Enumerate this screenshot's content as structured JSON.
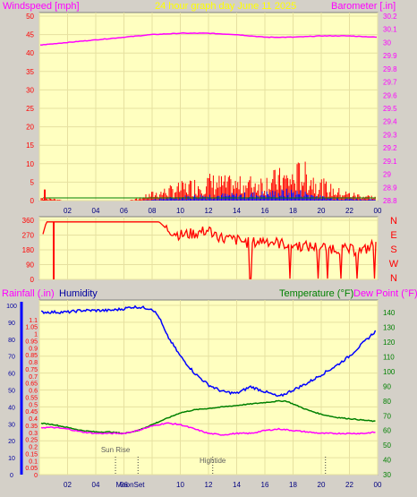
{
  "header": {
    "left_title": "Windspeed [mph]",
    "center_title": "24 hour graph day   June 11 2025",
    "right_title": "Barometer [.in]"
  },
  "colors": {
    "plot_bg": "#ffffc0",
    "frame_bg": "#d4d0c8",
    "gust": "#ff0000",
    "wind_avg": "#0000ff",
    "wind_green": "#008000",
    "baro": "#ff00ff",
    "direction": "#ff0000",
    "humidity": "#0000ff",
    "temperature": "#008000",
    "dewpoint": "#ff00ff",
    "rain_axis": "#ff0000",
    "label_pink": "#ff00ff",
    "label_green": "#008000",
    "label_blue": "#0000a0"
  },
  "chart_data": [
    {
      "type": "line",
      "name": "wind-baro",
      "xlabel": "",
      "x_ticks": [
        "02",
        "04",
        "06",
        "08",
        "10",
        "12",
        "14",
        "16",
        "18",
        "20",
        "22",
        "00"
      ],
      "y_left": {
        "label": "Windspeed [mph]",
        "ylim": [
          0,
          50
        ],
        "ticks": [
          0,
          5,
          10,
          15,
          20,
          25,
          30,
          35,
          40,
          45,
          50
        ]
      },
      "y_right": {
        "label": "Barometer [.in]",
        "ylim": [
          28.8,
          30.2
        ],
        "ticks": [
          "28.8",
          "28.9",
          "29",
          "29.1",
          "29.2",
          "29.3",
          "29.4",
          "29.5",
          "29.6",
          "29.7",
          "29.8",
          "29.9",
          "30",
          "30.1",
          "30.2"
        ]
      },
      "grid": true,
      "series": [
        {
          "name": "Barometer",
          "axis": "right",
          "x": [
            0,
            2,
            4,
            6,
            8,
            10,
            12,
            14,
            16,
            18,
            20,
            22,
            24
          ],
          "y": [
            29.98,
            30.0,
            30.02,
            30.04,
            30.06,
            30.07,
            30.07,
            30.06,
            30.04,
            30.04,
            30.05,
            30.05,
            30.04
          ]
        },
        {
          "name": "Wind gust",
          "axis": "left",
          "x": [
            0,
            1,
            2,
            4,
            6,
            7,
            8,
            10,
            12,
            14,
            16,
            17,
            18,
            18.5,
            19,
            20,
            21,
            22,
            23,
            24
          ],
          "y": [
            1,
            0.5,
            0,
            0,
            0,
            0.5,
            2,
            4,
            6,
            5,
            6,
            7,
            7,
            9,
            8,
            5,
            3,
            2,
            1.5,
            1
          ]
        },
        {
          "name": "Wind speed",
          "axis": "left",
          "x": [
            0,
            7,
            8,
            10,
            12,
            14,
            16,
            18,
            19,
            20,
            22,
            24
          ],
          "y": [
            0,
            0,
            0.3,
            1,
            1.5,
            1.5,
            2,
            2.5,
            2,
            1,
            0.5,
            0.2
          ]
        }
      ]
    },
    {
      "type": "line",
      "name": "wind-direction",
      "x_ticks": [],
      "y_left": {
        "label": "",
        "ylim": [
          0,
          360
        ],
        "ticks": [
          0,
          90,
          180,
          270,
          360
        ]
      },
      "y_right_labels": [
        "N",
        "W",
        "S",
        "E",
        "N"
      ],
      "grid": true,
      "series": [
        {
          "name": "Direction",
          "x": [
            0,
            0.5,
            1,
            2,
            4,
            6,
            7,
            8,
            8.5,
            9,
            10,
            11,
            12,
            13,
            14,
            15,
            16,
            17,
            18,
            19,
            20,
            21,
            22,
            23,
            24
          ],
          "y": [
            200,
            350,
            350,
            350,
            350,
            350,
            350,
            350,
            350,
            310,
            270,
            280,
            300,
            250,
            240,
            220,
            240,
            220,
            210,
            200,
            195,
            190,
            180,
            175,
            230
          ]
        }
      ]
    },
    {
      "type": "line",
      "name": "temp-humidity",
      "x_ticks": [
        "02",
        "04",
        "06",
        "08",
        "10",
        "12",
        "14",
        "16",
        "18",
        "20",
        "22",
        "00"
      ],
      "y_left_labels": {
        "rain": "Rainfall (.in)",
        "humidity": "Humidity"
      },
      "y_rain": {
        "ylim": [
          0,
          1.2
        ],
        "ticks": [
          "0",
          "0.05",
          "0.1",
          "0.15",
          "0.2",
          "0.25",
          "0.3",
          "0.35",
          "0.4",
          "0.45",
          "0.5",
          "0.55",
          "0.6",
          "0.65",
          "0.7",
          "0.75",
          "0.8",
          "0.85",
          "0.9",
          "0.95",
          "1",
          "1.05",
          "1.1"
        ]
      },
      "y_humidity": {
        "ylim": [
          0,
          100
        ],
        "ticks": [
          0,
          10,
          20,
          30,
          40,
          50,
          60,
          70,
          80,
          90,
          100
        ]
      },
      "y_right": {
        "label_temp": "Temperature (°F)",
        "label_dew": "Dew Point (°F)",
        "ylim": [
          30,
          145
        ],
        "ticks": [
          30,
          40,
          50,
          60,
          70,
          80,
          90,
          100,
          110,
          120,
          130,
          140
        ]
      },
      "grid": true,
      "annotations": [
        {
          "text": "Sun Rise",
          "x": 5.4
        },
        {
          "text": "Moon Set",
          "x": 7.0
        },
        {
          "text": "Hightide",
          "x": 12.3
        },
        {
          "text": "",
          "x": 20.3
        }
      ],
      "x_extra_labels": [
        "Moon",
        "Set"
      ],
      "series": [
        {
          "name": "Humidity",
          "axis": "humidity",
          "x": [
            0,
            1,
            2,
            3,
            4,
            5,
            6,
            6.5,
            7,
            8,
            8.5,
            9,
            10,
            11,
            12,
            13,
            14,
            15,
            16,
            17,
            18,
            19,
            20,
            21,
            22,
            23,
            24
          ],
          "y": [
            96,
            96,
            96,
            97,
            97,
            97,
            98,
            99,
            99,
            98,
            93,
            83,
            70,
            60,
            53,
            49,
            48,
            52,
            49,
            46,
            50,
            54,
            59,
            64,
            70,
            78,
            86
          ]
        },
        {
          "name": "Temperature",
          "axis": "temp",
          "x": [
            0,
            1,
            2,
            3,
            4,
            5,
            6,
            7,
            8,
            9,
            10,
            11,
            12,
            13,
            14,
            15,
            16,
            17,
            17.5,
            18,
            19,
            20,
            21,
            22,
            23,
            24
          ],
          "y": [
            65,
            64,
            62,
            60,
            59,
            59,
            58,
            60,
            64,
            68,
            72,
            74,
            75,
            76,
            77,
            78,
            79,
            80,
            80,
            78,
            74,
            71,
            69,
            68,
            67,
            66
          ]
        },
        {
          "name": "Dew Point",
          "axis": "temp",
          "x": [
            0,
            1,
            2,
            3,
            4,
            5,
            6,
            7,
            8,
            9,
            10,
            11,
            12,
            13,
            14,
            15,
            16,
            17,
            18,
            19,
            20,
            21,
            22,
            23,
            24
          ],
          "y": [
            62,
            62,
            61,
            59,
            58,
            58,
            58,
            60,
            63,
            65,
            64,
            61,
            58,
            57,
            58,
            58,
            60,
            61,
            60,
            59,
            58,
            58,
            58,
            58,
            59
          ]
        }
      ]
    }
  ]
}
